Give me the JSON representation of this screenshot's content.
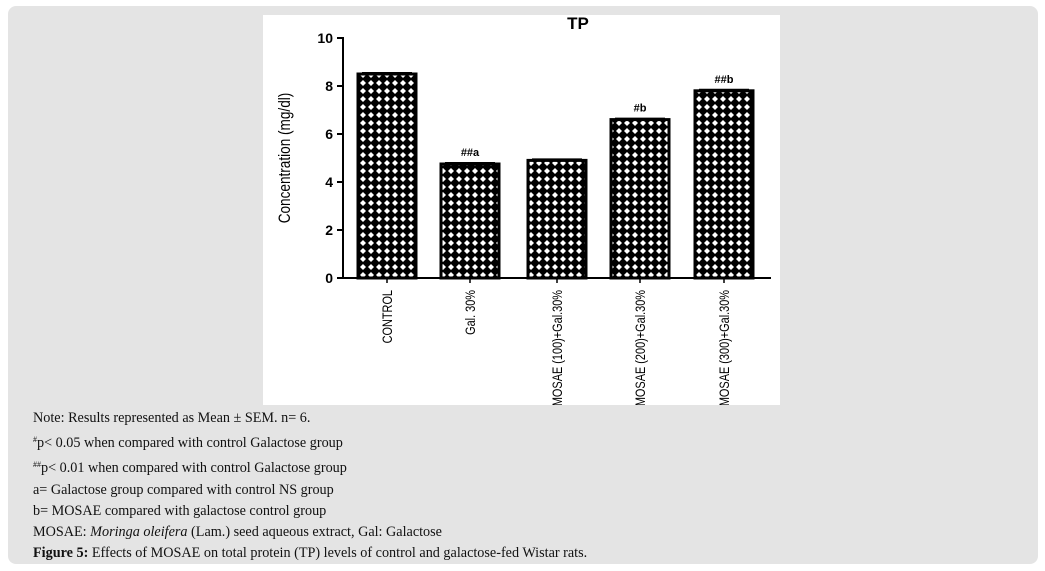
{
  "chart_data": {
    "type": "bar",
    "title": "TP",
    "xlabel": "",
    "ylabel": "Concentration (mg/dl)",
    "ylim": [
      0,
      10
    ],
    "yticks": [
      "0",
      "2",
      "4",
      "6",
      "8",
      "10"
    ],
    "categories": [
      "CONTROL",
      "Gal. 30%",
      "MOSAE (100)+Gal.30%",
      "MOSAE (200)+Gal.30%",
      "MOSAE (300)+Gal.30%"
    ],
    "values": [
      8.5,
      4.75,
      4.9,
      6.6,
      7.8
    ],
    "annotations": [
      "",
      "##a",
      "",
      "#b",
      "##b"
    ],
    "grid": false
  },
  "notes": {
    "line1": "Note: Results represented as Mean ± SEM. n= 6.",
    "line2_sup": "#",
    "line2": "p< 0.05 when compared with control Galactose group",
    "line3_sup": "##",
    "line3": "p< 0.01 when compared with control Galactose group",
    "line4": "a= Galactose group compared with control NS group",
    "line5": "b= MOSAE compared with galactose control group",
    "line6_a": "MOSAE: ",
    "line6_italic": "Moringa oleifera",
    "line6_b": " (Lam.) seed aqueous extract, Gal: Galactose",
    "caption_label": "Figure 5:",
    "caption_text": " Effects of MOSAE on total protein (TP) levels of control and galactose-fed Wistar rats."
  }
}
